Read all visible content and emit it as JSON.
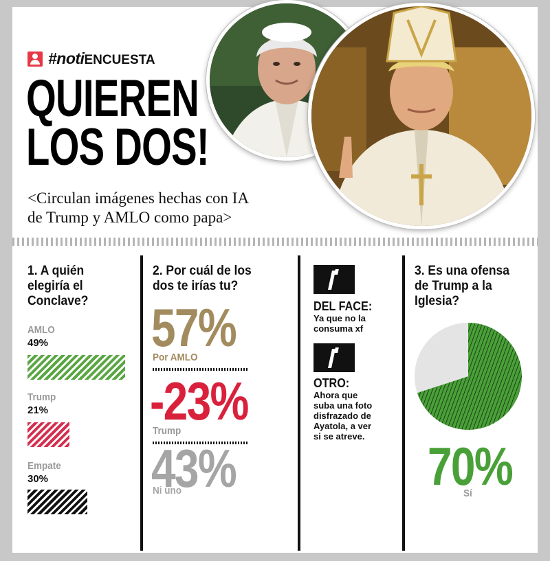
{
  "header": {
    "tag": "#noti",
    "tag_suffix": "ENCUESTA",
    "headline_line1": "QUIEREN",
    "headline_line2": "LOS DOS!",
    "subhead_line1": "<Circulan imágenes hechas con IA",
    "subhead_line2": "de Trump y AMLO como papa>"
  },
  "chart_data": [
    {
      "type": "bar",
      "title": "1. A quién elegiría el Conclave?",
      "title_lines": [
        "1. A quién",
        "elegiría el",
        "Conclave?"
      ],
      "categories": [
        "AMLO",
        "Trump",
        "Empate"
      ],
      "values": [
        49,
        21,
        30
      ],
      "value_labels": [
        "49%",
        "21%",
        "30%"
      ],
      "colors": [
        "#5aa643",
        "#d32f4f",
        "#111111"
      ]
    },
    {
      "type": "table",
      "title": "2. Por cuál de los dos te irías tu?",
      "title_lines": [
        "2. Por cuál de los",
        "dos te irías tu?"
      ],
      "items": [
        {
          "value_label": "57%",
          "label": "Por AMLO",
          "color": "#a28b5e"
        },
        {
          "value_label": "-23%",
          "label": "Trump",
          "color": "#d9213c"
        },
        {
          "value_label": "43%",
          "label": "Ni uno",
          "color": "#a5a5a5"
        }
      ]
    },
    {
      "type": "pie",
      "title": "3. Es una ofensa de Trump a la Iglesia?",
      "title_lines": [
        "3. Es una ofensa",
        "de Trump a la",
        "Iglesia?"
      ],
      "values": [
        70,
        30
      ],
      "main_value_label": "70%",
      "main_label": "Sí",
      "colors": [
        "#4aa038",
        "#e4e4e4"
      ]
    }
  ],
  "quotes": [
    {
      "source": "DEL FACE:",
      "lines": [
        "Ya que no la",
        "consuma xf"
      ]
    },
    {
      "source": "OTRO:",
      "lines": [
        "Ahora que",
        "suba una foto",
        "disfrazado de",
        "Ayatola, a ver",
        "si se atreve."
      ]
    }
  ],
  "colors": {
    "green": "#5aa643",
    "red": "#d32f4f",
    "gold": "#a28b5e",
    "gray": "#a5a5a5",
    "black": "#111111"
  }
}
